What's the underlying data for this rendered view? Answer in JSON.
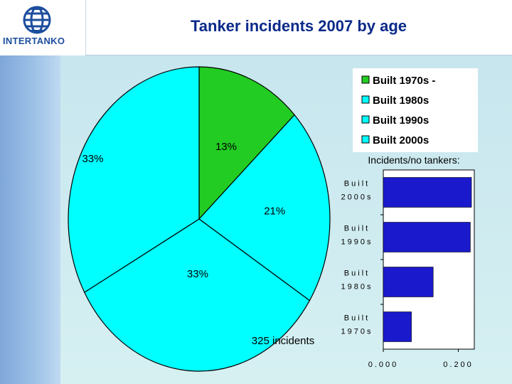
{
  "header": {
    "title": "Tanker incidents 2007 by age",
    "logo_text": "INTERTANKO"
  },
  "colors": {
    "green": "#22cc22",
    "cyan": "#00ffff",
    "bar": "#1a1acc",
    "title": "#0b2a8a"
  },
  "chart_data": [
    {
      "type": "pie",
      "categories": [
        "Built 1970s -",
        "Built 1980s",
        "Built 1990s",
        "Built 2000s"
      ],
      "values": [
        13,
        21,
        33,
        33
      ],
      "value_labels": [
        "13%",
        "21%",
        "33%",
        "33%"
      ],
      "colors": [
        "#22cc22",
        "#00ffff",
        "#00ffff",
        "#00ffff"
      ],
      "annotation": "325 incidents",
      "legend": {
        "position": "top-right",
        "entries": [
          "Built 1970s -",
          "Built 1980s",
          "Built 1990s",
          "Built 2000s"
        ]
      }
    },
    {
      "type": "bar",
      "orientation": "horizontal",
      "title": "Incidents/no tankers:",
      "categories": [
        {
          "line1": "Built",
          "line2": "2000s"
        },
        {
          "line1": "Built",
          "line2": "1990s"
        },
        {
          "line1": "Built",
          "line2": "1980s"
        },
        {
          "line1": "Built",
          "line2": "1970s"
        }
      ],
      "values": [
        0.235,
        0.232,
        0.133,
        0.075
      ],
      "xlim": [
        0,
        0.235
      ],
      "x_ticks": [
        "0.000",
        "0.200"
      ]
    }
  ]
}
